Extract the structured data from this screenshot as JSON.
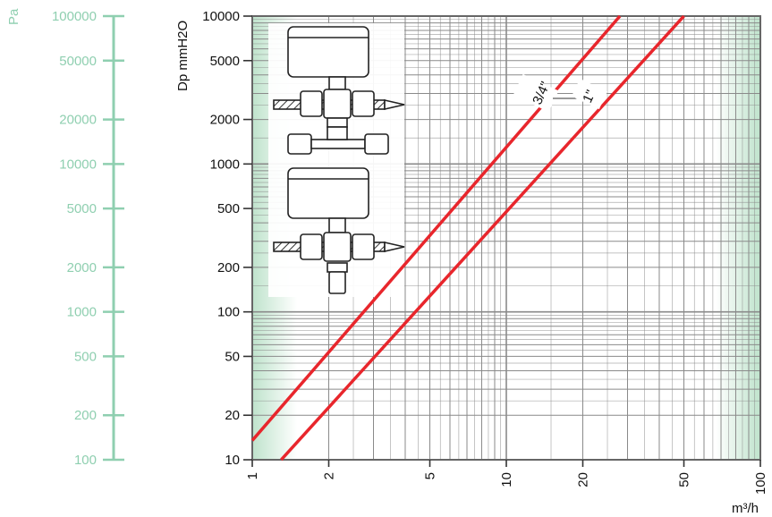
{
  "chart_data": {
    "type": "line",
    "title": "",
    "xlabel": "m³/h",
    "ylabel": "Dp mmH2O",
    "secondary_ylabel": "Pa",
    "x_scale": "log",
    "y_scale": "log",
    "xlim": [
      1,
      100
    ],
    "ylim": [
      10,
      10000
    ],
    "x_ticks": [
      1,
      2,
      5,
      10,
      20,
      50,
      100
    ],
    "x_tick_labels": [
      "1",
      "2",
      "5",
      "10",
      "20",
      "50",
      "100"
    ],
    "y_ticks": [
      10,
      20,
      50,
      100,
      200,
      500,
      1000,
      2000,
      5000,
      10000
    ],
    "y_tick_labels": [
      "10",
      "20",
      "50",
      "100",
      "200",
      "500",
      "1000",
      "2000",
      "5000",
      "10000"
    ],
    "pa_ticks": [
      100,
      200,
      500,
      1000,
      2000,
      5000,
      10000,
      20000,
      50000,
      100000
    ],
    "pa_tick_labels": [
      "100",
      "200",
      "500",
      "1000",
      "2000",
      "5000",
      "10000",
      "20000",
      "50000",
      "100000"
    ],
    "grid": true,
    "series": [
      {
        "name": "3/4\"",
        "x": [
          1,
          28
        ],
        "y": [
          13.5,
          10000
        ],
        "color": "#e8262c"
      },
      {
        "name": "1\"",
        "x": [
          1.3,
          50
        ],
        "y": [
          10,
          10000
        ],
        "color": "#e8262c"
      }
    ]
  },
  "colors": {
    "grid": "#8a8a8a",
    "pa_axis": "#8fcfb0",
    "band": "#cfe9d8",
    "curve": "#e8262c"
  },
  "illustration": {
    "icon": "valve-assembly-icon"
  }
}
